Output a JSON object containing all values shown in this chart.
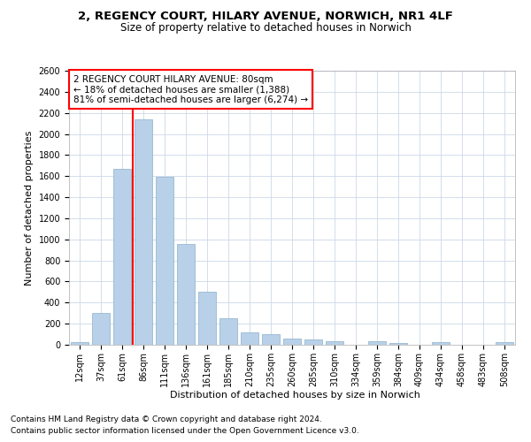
{
  "title1": "2, REGENCY COURT, HILARY AVENUE, NORWICH, NR1 4LF",
  "title2": "Size of property relative to detached houses in Norwich",
  "xlabel": "Distribution of detached houses by size in Norwich",
  "ylabel": "Number of detached properties",
  "categories": [
    "12sqm",
    "37sqm",
    "61sqm",
    "86sqm",
    "111sqm",
    "136sqm",
    "161sqm",
    "185sqm",
    "210sqm",
    "235sqm",
    "260sqm",
    "285sqm",
    "310sqm",
    "334sqm",
    "359sqm",
    "384sqm",
    "409sqm",
    "434sqm",
    "458sqm",
    "483sqm",
    "508sqm"
  ],
  "values": [
    25,
    300,
    1670,
    2140,
    1590,
    960,
    500,
    250,
    120,
    100,
    55,
    50,
    35,
    0,
    35,
    20,
    0,
    25,
    0,
    0,
    25
  ],
  "bar_color": "#b8d0e8",
  "bar_edge_color": "#8ab0cc",
  "grid_color": "#ccd8e8",
  "vline_color": "red",
  "annotation_text": "2 REGENCY COURT HILARY AVENUE: 80sqm\n← 18% of detached houses are smaller (1,388)\n81% of semi-detached houses are larger (6,274) →",
  "annotation_box_color": "white",
  "annotation_box_edge": "red",
  "footer1": "Contains HM Land Registry data © Crown copyright and database right 2024.",
  "footer2": "Contains public sector information licensed under the Open Government Licence v3.0.",
  "ylim": [
    0,
    2600
  ],
  "yticks": [
    0,
    200,
    400,
    600,
    800,
    1000,
    1200,
    1400,
    1600,
    1800,
    2000,
    2200,
    2400,
    2600
  ],
  "title1_fontsize": 9.5,
  "title2_fontsize": 8.5,
  "xlabel_fontsize": 8,
  "ylabel_fontsize": 8,
  "tick_fontsize": 7,
  "footer_fontsize": 6.5,
  "ann_fontsize": 7.5
}
